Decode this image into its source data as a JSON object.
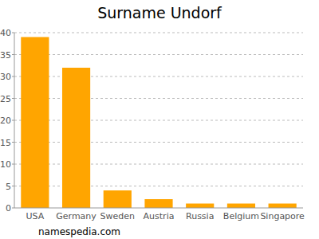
{
  "chart_data": {
    "type": "bar",
    "title": "Surname Undorf",
    "categories": [
      "USA",
      "Germany",
      "Sweden",
      "Austria",
      "Russia",
      "Belgium",
      "Singapore"
    ],
    "values": [
      39,
      32,
      4,
      2,
      1,
      1,
      1
    ],
    "color": "#ffa500",
    "ylim": [
      0,
      40
    ],
    "yticks": [
      0,
      5,
      10,
      15,
      20,
      25,
      30,
      35,
      40
    ],
    "grid": true,
    "annotations": [
      "namespedia.com"
    ]
  }
}
